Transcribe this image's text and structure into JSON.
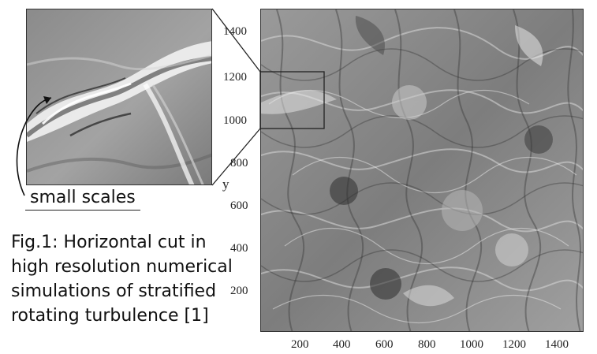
{
  "figure": {
    "inset_label": "small scales",
    "caption_lines": [
      "Fig.1: Horizontal cut in",
      "high resolution numerical",
      "simulations of stratified",
      "rotating turbulence [1]"
    ],
    "y_axis_label": "y",
    "y_ticks": [
      "200",
      "400",
      "600",
      "800",
      "1000",
      "1200",
      "1400"
    ],
    "x_ticks": [
      "200",
      "400",
      "600",
      "800",
      "1000",
      "1200",
      "1400"
    ]
  }
}
